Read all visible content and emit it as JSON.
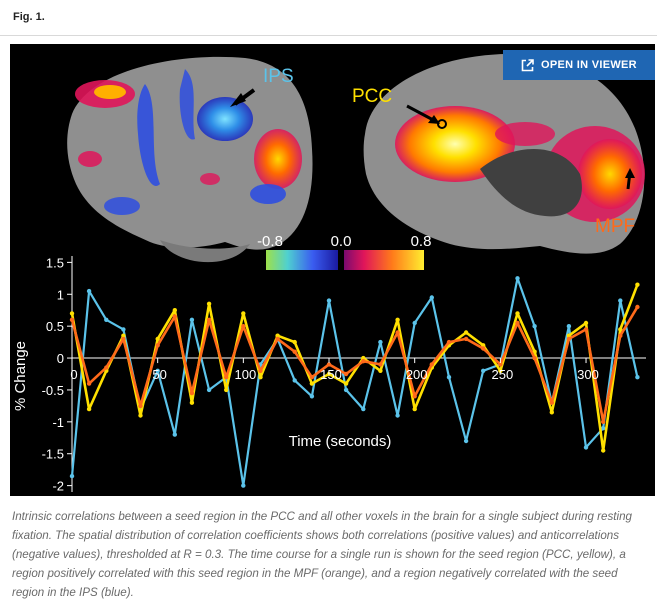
{
  "figure_label": "Fig. 1.",
  "viewer_button": {
    "label": "OPEN IN VIEWER",
    "icon": "external-link-icon"
  },
  "brain": {
    "labels": {
      "ips": "IPS",
      "pcc": "PCC",
      "mpf": "MPF"
    },
    "colorbar": {
      "neg_min": "-0.8",
      "zero": "0.0",
      "pos_max": "0.8"
    },
    "colors": {
      "ips": "#5bc3ea",
      "pcc": "#ffe000",
      "mpf": "#ff6a1a",
      "cortex": "#8f8f8f"
    }
  },
  "chart_data": {
    "type": "line",
    "xlabel": "Time (seconds)",
    "ylabel": "% Change",
    "xlim": [
      0,
      335
    ],
    "ylim": [
      -2.1,
      1.6
    ],
    "x_ticks": [
      "0",
      "50",
      "100",
      "150",
      "200",
      "250",
      "300"
    ],
    "y_ticks": [
      "1.5",
      "1",
      "0.5",
      "0",
      "-0.5",
      "-1",
      "-1.5",
      "-2"
    ],
    "x_tick_values": [
      0,
      50,
      100,
      150,
      200,
      250,
      300
    ],
    "y_tick_values": [
      1.5,
      1,
      0.5,
      0,
      -0.5,
      -1,
      -1.5,
      -2
    ],
    "x": [
      0,
      10,
      20,
      30,
      40,
      50,
      60,
      70,
      80,
      90,
      100,
      110,
      120,
      130,
      140,
      150,
      160,
      170,
      180,
      190,
      200,
      210,
      220,
      230,
      240,
      250,
      260,
      270,
      280,
      290,
      300,
      310,
      320,
      330
    ],
    "series": [
      {
        "color": "#5bc3ea",
        "values": [
          -1.85,
          1.05,
          0.6,
          0.45,
          -0.8,
          -0.2,
          -1.2,
          0.6,
          -0.5,
          -0.3,
          -2.0,
          -0.1,
          0.3,
          -0.35,
          -0.6,
          0.9,
          -0.5,
          -0.8,
          0.25,
          -0.9,
          0.55,
          0.95,
          -0.3,
          -1.3,
          -0.2,
          -0.1,
          1.25,
          0.5,
          -0.7,
          0.5,
          -1.4,
          -1.1,
          0.9,
          -0.3
        ]
      },
      {
        "color": "#ffe000",
        "values": [
          0.7,
          -0.8,
          -0.2,
          0.35,
          -0.9,
          0.3,
          0.75,
          -0.7,
          0.85,
          -0.5,
          0.7,
          -0.3,
          0.35,
          0.25,
          -0.4,
          -0.25,
          -0.4,
          0.0,
          -0.2,
          0.6,
          -0.8,
          -0.15,
          0.2,
          0.4,
          0.2,
          -0.2,
          0.7,
          0.1,
          -0.85,
          0.35,
          0.55,
          -1.45,
          0.45,
          1.15
        ]
      },
      {
        "color": "#ff6a1a",
        "values": [
          0.6,
          -0.4,
          -0.15,
          0.3,
          -0.75,
          0.2,
          0.65,
          -0.55,
          0.6,
          -0.3,
          0.5,
          -0.2,
          0.3,
          0.1,
          -0.3,
          -0.1,
          -0.25,
          -0.05,
          -0.1,
          0.4,
          -0.6,
          -0.1,
          0.25,
          0.3,
          0.15,
          -0.1,
          0.55,
          0.0,
          -0.7,
          0.3,
          0.45,
          -1.0,
          0.35,
          0.8
        ]
      }
    ]
  },
  "caption": "Intrinsic correlations between a seed region in the PCC and all other voxels in the brain for a single subject during resting fixation. The spatial distribution of correlation coefficients shows both correlations (positive values) and anticorrelations (negative values), thresholded at R = 0.3. The time course for a single run is shown for the seed region (PCC, yellow), a region positively correlated with this seed region in the MPF (orange), and a region negatively correlated with the seed region in the IPS (blue)."
}
